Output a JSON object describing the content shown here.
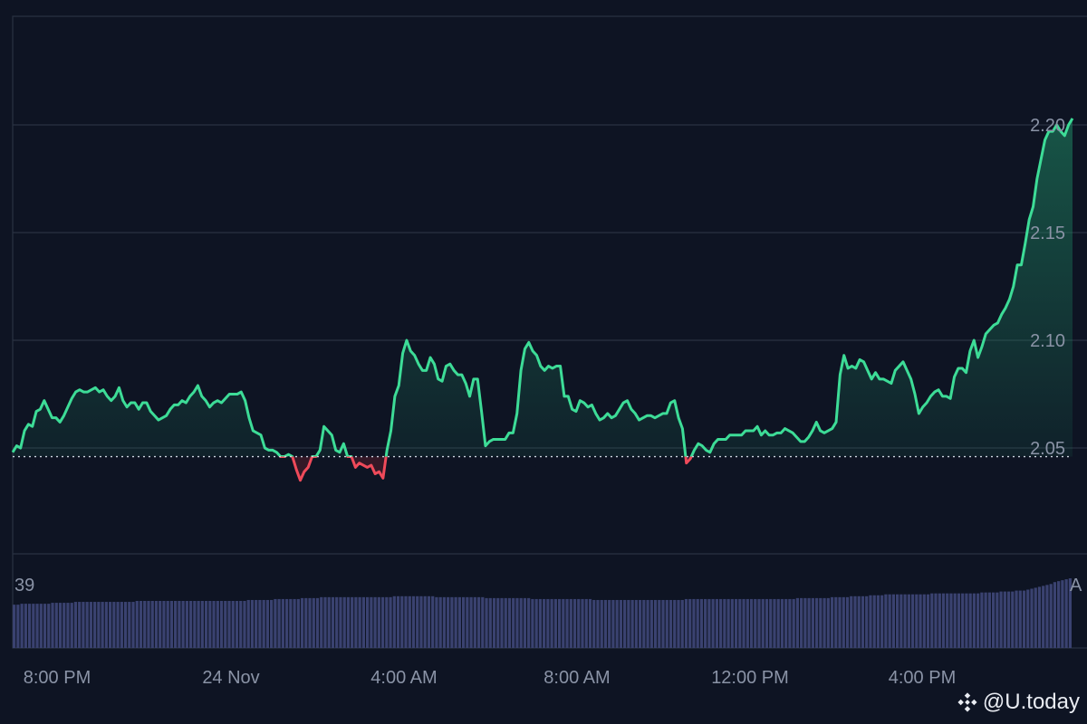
{
  "chart_data": {
    "type": "area",
    "y_ticks": [
      "2.05",
      "2.10",
      "2.15",
      "2.20"
    ],
    "x_ticks": [
      "8:00 PM",
      "24 Nov",
      "4:00 AM",
      "8:00 AM",
      "12:00 PM",
      "4:00 PM"
    ],
    "ylim": [
      2.005,
      2.255
    ],
    "baseline": 2.046,
    "grid": true,
    "colors": {
      "up": "#3ddc97",
      "down": "#ef4a5a",
      "grid": "#2a3242",
      "volume": "#3a4270",
      "background": "#0e1423"
    },
    "series": [
      {
        "values": [
          2.048,
          2.051,
          2.05,
          2.058,
          2.061,
          2.06,
          2.067,
          2.068,
          2.072,
          2.068,
          2.064,
          2.064,
          2.062,
          2.065,
          2.069,
          2.073,
          2.076,
          2.077,
          2.076,
          2.076,
          2.077,
          2.078,
          2.076,
          2.077,
          2.074,
          2.072,
          2.074,
          2.078,
          2.072,
          2.069,
          2.071,
          2.071,
          2.068,
          2.071,
          2.071,
          2.067,
          2.065,
          2.063,
          2.064,
          2.065,
          2.068,
          2.07,
          2.07,
          2.072,
          2.071,
          2.074,
          2.076,
          2.079,
          2.074,
          2.072,
          2.069,
          2.071,
          2.072,
          2.071,
          2.073,
          2.075,
          2.075,
          2.075,
          2.076,
          2.072,
          2.064,
          2.058,
          2.057,
          2.056,
          2.05,
          2.049,
          2.049,
          2.048,
          2.046,
          2.046,
          2.047,
          2.046,
          2.04,
          2.035,
          2.039,
          2.041,
          2.046,
          2.046,
          2.049,
          2.06,
          2.058,
          2.056,
          2.049,
          2.048,
          2.052,
          2.046,
          2.046,
          2.041,
          2.043,
          2.042,
          2.041,
          2.042,
          2.038,
          2.039,
          2.036,
          2.049,
          2.058,
          2.074,
          2.079,
          2.094,
          2.1,
          2.095,
          2.093,
          2.089,
          2.086,
          2.086,
          2.092,
          2.089,
          2.082,
          2.081,
          2.088,
          2.089,
          2.086,
          2.084,
          2.084,
          2.08,
          2.074,
          2.082,
          2.082,
          2.067,
          2.051,
          2.053,
          2.054,
          2.054,
          2.054,
          2.054,
          2.057,
          2.057,
          2.066,
          2.086,
          2.096,
          2.099,
          2.095,
          2.093,
          2.088,
          2.086,
          2.088,
          2.087,
          2.088,
          2.088,
          2.074,
          2.074,
          2.068,
          2.067,
          2.072,
          2.071,
          2.069,
          2.07,
          2.066,
          2.063,
          2.064,
          2.066,
          2.064,
          2.065,
          2.068,
          2.071,
          2.072,
          2.068,
          2.066,
          2.063,
          2.064,
          2.065,
          2.065,
          2.064,
          2.065,
          2.066,
          2.066,
          2.071,
          2.072,
          2.064,
          2.059,
          2.043,
          2.045,
          2.049,
          2.052,
          2.051,
          2.049,
          2.048,
          2.052,
          2.054,
          2.054,
          2.054,
          2.056,
          2.056,
          2.056,
          2.056,
          2.058,
          2.058,
          2.058,
          2.06,
          2.056,
          2.058,
          2.056,
          2.056,
          2.057,
          2.057,
          2.059,
          2.058,
          2.057,
          2.055,
          2.053,
          2.053,
          2.055,
          2.058,
          2.062,
          2.058,
          2.057,
          2.058,
          2.059,
          2.062,
          2.084,
          2.093,
          2.087,
          2.088,
          2.087,
          2.091,
          2.09,
          2.086,
          2.082,
          2.085,
          2.082,
          2.082,
          2.081,
          2.08,
          2.086,
          2.088,
          2.09,
          2.086,
          2.082,
          2.075,
          2.066,
          2.069,
          2.071,
          2.074,
          2.076,
          2.077,
          2.074,
          2.074,
          2.073,
          2.083,
          2.087,
          2.087,
          2.085,
          2.095,
          2.1,
          2.092,
          2.097,
          2.103,
          2.105,
          2.107,
          2.108,
          2.112,
          2.115,
          2.119,
          2.125,
          2.135,
          2.135,
          2.145,
          2.156,
          2.162,
          2.175,
          2.184,
          2.193,
          2.197,
          2.197,
          2.2,
          2.197,
          2.195,
          2.2,
          2.203
        ]
      }
    ],
    "volume_label": "39",
    "volume_right_label": "A",
    "volume": [
      0.46,
      0.46,
      0.47,
      0.47,
      0.47,
      0.47,
      0.47,
      0.47,
      0.47,
      0.47,
      0.48,
      0.48,
      0.48,
      0.48,
      0.48,
      0.48,
      0.49,
      0.49,
      0.49,
      0.49,
      0.49,
      0.49,
      0.49,
      0.49,
      0.49,
      0.49,
      0.49,
      0.49,
      0.49,
      0.49,
      0.49,
      0.49,
      0.5,
      0.5,
      0.5,
      0.5,
      0.5,
      0.5,
      0.5,
      0.5,
      0.5,
      0.5,
      0.5,
      0.5,
      0.5,
      0.5,
      0.5,
      0.5,
      0.5,
      0.5,
      0.5,
      0.5,
      0.5,
      0.5,
      0.5,
      0.5,
      0.5,
      0.5,
      0.5,
      0.5,
      0.5,
      0.51,
      0.51,
      0.51,
      0.51,
      0.51,
      0.51,
      0.51,
      0.52,
      0.52,
      0.52,
      0.52,
      0.52,
      0.52,
      0.52,
      0.53,
      0.53,
      0.53,
      0.53,
      0.53,
      0.54,
      0.54,
      0.54,
      0.54,
      0.54,
      0.54,
      0.54,
      0.54,
      0.54,
      0.54,
      0.54,
      0.54,
      0.54,
      0.54,
      0.54,
      0.54,
      0.54,
      0.54,
      0.54,
      0.55,
      0.55,
      0.55,
      0.55,
      0.55,
      0.55,
      0.55,
      0.55,
      0.55,
      0.55,
      0.55,
      0.54,
      0.54,
      0.54,
      0.54,
      0.54,
      0.54,
      0.54,
      0.54,
      0.54,
      0.54,
      0.54,
      0.54,
      0.54,
      0.53,
      0.53,
      0.53,
      0.53,
      0.53,
      0.53,
      0.53,
      0.53,
      0.53,
      0.53,
      0.53,
      0.53,
      0.52,
      0.52,
      0.52,
      0.52,
      0.52,
      0.52,
      0.52,
      0.52,
      0.52,
      0.52,
      0.52,
      0.52,
      0.52,
      0.52,
      0.52,
      0.52,
      0.51,
      0.51,
      0.51,
      0.51,
      0.51,
      0.51,
      0.51,
      0.51,
      0.51,
      0.51,
      0.51,
      0.51,
      0.51,
      0.51,
      0.51,
      0.51,
      0.51,
      0.51,
      0.51,
      0.51,
      0.51,
      0.51,
      0.51,
      0.51,
      0.52,
      0.52,
      0.52,
      0.52,
      0.52,
      0.52,
      0.52,
      0.52,
      0.52,
      0.52,
      0.52,
      0.52,
      0.52,
      0.52,
      0.52,
      0.52,
      0.52,
      0.52,
      0.52,
      0.52,
      0.52,
      0.52,
      0.52,
      0.52,
      0.52,
      0.52,
      0.52,
      0.52,
      0.52,
      0.53,
      0.53,
      0.53,
      0.53,
      0.53,
      0.53,
      0.53,
      0.53,
      0.53,
      0.54,
      0.54,
      0.54,
      0.54,
      0.54,
      0.55,
      0.55,
      0.55,
      0.55,
      0.55,
      0.56,
      0.56,
      0.56,
      0.56,
      0.57,
      0.57,
      0.57,
      0.57,
      0.57,
      0.57,
      0.57,
      0.57,
      0.57,
      0.57,
      0.57,
      0.57,
      0.58,
      0.58,
      0.58,
      0.58,
      0.58,
      0.58,
      0.58,
      0.58,
      0.58,
      0.58,
      0.58,
      0.58,
      0.58,
      0.59,
      0.59,
      0.59,
      0.59,
      0.59,
      0.6,
      0.6,
      0.6,
      0.6,
      0.61,
      0.61,
      0.61,
      0.62,
      0.63,
      0.64,
      0.65,
      0.66,
      0.67,
      0.68,
      0.7,
      0.71,
      0.72,
      0.73,
      0.74
    ]
  },
  "watermark": {
    "text": "@U.today",
    "icon": "binance-logo-icon"
  }
}
